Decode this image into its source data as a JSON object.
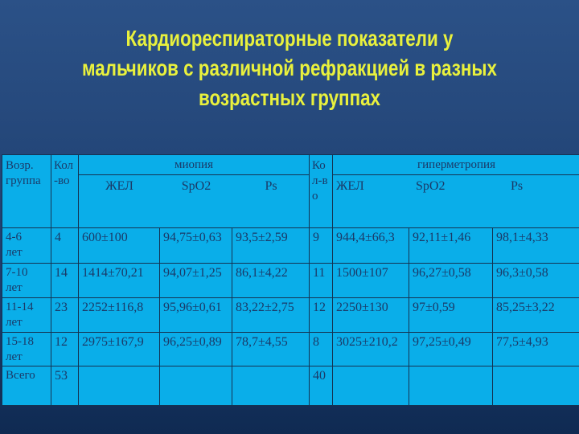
{
  "slide": {
    "title_lines": [
      "Кардиореспираторные показатели у",
      "мальчиков с различной рефракцией в разных",
      "возрастных группах"
    ]
  },
  "colors": {
    "background_navy": "#234577",
    "title_yellow": "#E9F13D",
    "cell_cyan": "#0AAEE9",
    "table_text_navy": "#1B3A68",
    "border_navy": "#143353"
  },
  "table": {
    "headers": {
      "age": "Возр. группа",
      "count": "Кол-во",
      "myopia": "миопия",
      "hyper": "гиперметропия",
      "zhel": "ЖЕЛ",
      "spo2": "SpO2",
      "ps": "Ps"
    },
    "rows": [
      {
        "age": "4-6\nлет",
        "n_m": "4",
        "zhel_m": "600±100",
        "spo2_m": "94,75±0,63",
        "ps_m": "93,5±2,59",
        "n_h": "9",
        "zhel_h": "944,4±66,3",
        "spo2_h": "92,11±1,46",
        "ps_h": "98,1±4,33"
      },
      {
        "age": "7-10\nлет",
        "n_m": "14",
        "zhel_m": "1414±70,21",
        "spo2_m": "94,07±1,25",
        "ps_m": "86,1±4,22",
        "n_h": "11",
        "zhel_h": "1500±107",
        "spo2_h": "96,27±0,58",
        "ps_h": "96,3±0,58"
      },
      {
        "age": "11-14\nлет",
        "n_m": "23",
        "zhel_m": "2252±116,8",
        "spo2_m": "95,96±0,61",
        "ps_m": "83,22±2,75",
        "n_h": "12",
        "zhel_h": "2250±130",
        "spo2_h": "97±0,59",
        "ps_h": "85,25±3,22"
      },
      {
        "age": "15-18\nлет",
        "n_m": "12",
        "zhel_m": "2975±167,9",
        "spo2_m": "96,25±0,89",
        "ps_m": "78,7±4,55",
        "n_h": "8",
        "zhel_h": "3025±210,2",
        "spo2_h": "97,25±0,49",
        "ps_h": "77,5±4,93"
      },
      {
        "age": "Всего",
        "n_m": "53",
        "zhel_m": "",
        "spo2_m": "",
        "ps_m": "",
        "n_h": "40",
        "zhel_h": "",
        "spo2_h": "",
        "ps_h": ""
      }
    ]
  }
}
